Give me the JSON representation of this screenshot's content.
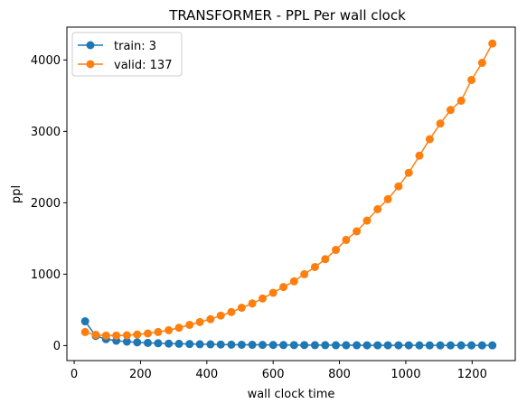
{
  "chart_data": {
    "type": "line",
    "title": "TRANSFORMER - PPL Per wall clock",
    "xlabel": "wall clock time",
    "ylabel": "ppl",
    "xlim": [
      -22,
      1330
    ],
    "ylim": [
      -210,
      4460
    ],
    "x_ticks": [
      0,
      200,
      400,
      600,
      800,
      1000,
      1200
    ],
    "y_ticks": [
      0,
      1000,
      2000,
      3000,
      4000
    ],
    "grid": false,
    "legend_position": "upper-left",
    "marker": "circle",
    "colors": {
      "train": "#1f77b4",
      "valid": "#ff7f0e"
    },
    "x": [
      33,
      65,
      96,
      127,
      159,
      190,
      222,
      253,
      285,
      316,
      348,
      379,
      411,
      442,
      474,
      505,
      537,
      568,
      600,
      631,
      663,
      694,
      726,
      757,
      789,
      820,
      852,
      883,
      915,
      946,
      978,
      1009,
      1041,
      1072,
      1104,
      1135,
      1167,
      1198,
      1230,
      1261
    ],
    "series": [
      {
        "name": "train: 3",
        "color": "#1f77b4",
        "values": [
          340,
          135,
          90,
          68,
          55,
          45,
          38,
          33,
          28,
          25,
          22,
          19,
          17,
          15,
          13,
          12,
          11,
          10,
          9,
          8,
          7,
          7,
          6,
          6,
          5,
          5,
          5,
          4,
          4,
          4,
          4,
          4,
          3,
          3,
          3,
          3,
          3,
          3,
          3,
          3
        ]
      },
      {
        "name": "valid: 137",
        "color": "#ff7f0e",
        "values": [
          190,
          150,
          140,
          140,
          145,
          155,
          170,
          190,
          215,
          250,
          290,
          330,
          370,
          420,
          470,
          530,
          590,
          660,
          740,
          820,
          900,
          1000,
          1100,
          1210,
          1340,
          1480,
          1600,
          1750,
          1910,
          2050,
          2230,
          2420,
          2660,
          2890,
          3110,
          3300,
          3430,
          3720,
          3960,
          4230
        ]
      }
    ]
  }
}
